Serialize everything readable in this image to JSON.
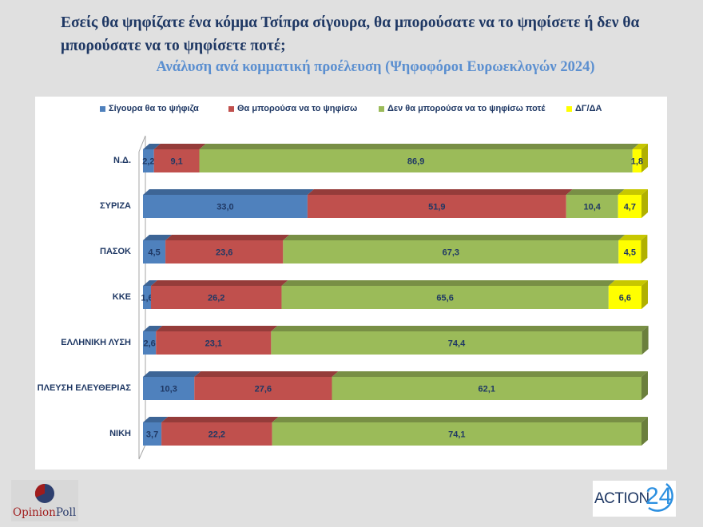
{
  "header": {
    "title": "Εσείς θα ψηφίζατε ένα κόμμα Τσίπρα σίγουρα, θα μπορούσατε να το ψηφίσετε ή δεν θα μπορούσατε να το ψηφίσετε ποτέ;",
    "subtitle": "Ανάλυση ανά κομματική προέλευση (Ψηφοφόροι Ευρωεκλογών 2024)"
  },
  "logos": {
    "opinionpoll_part1": "Opinion",
    "opinionpoll_part2": "Poll",
    "action24_text": "ACTION",
    "action24_num": "24"
  },
  "colors": {
    "series": [
      "#4f81bd",
      "#c0504d",
      "#9bbb59",
      "#ffff00"
    ],
    "series_top": [
      "#3d6596",
      "#953c3a",
      "#788f45",
      "#c7c700"
    ],
    "series_side": [
      "#365a87",
      "#85342f",
      "#6b7f3d",
      "#b0b000"
    ],
    "label": "#1f3864"
  },
  "chart_data": {
    "type": "bar",
    "orientation": "horizontal",
    "stacked": true,
    "percent_stacked": true,
    "three_d": true,
    "title": "Εσείς θα ψηφίζατε ένα κόμμα Τσίπρα σίγουρα, θα μπορούσατε να το ψηφίσετε ή δεν θα μπορούσατε να το ψηφίσετε ποτέ;",
    "subtitle": "Ανάλυση ανά κομματική προέλευση (Ψηφοφόροι Ευρωεκλογών 2024)",
    "legend_position": "top",
    "xlim": [
      0,
      100
    ],
    "categories": [
      "Ν.Δ.",
      "ΣΥΡΙΖΑ",
      "ΠΑΣΟΚ",
      "ΚΚΕ",
      "ΕΛΛΗΝΙΚΗ ΛΥΣΗ",
      "ΠΛΕΥΣΗ ΕΛΕΥΘΕΡΙΑΣ",
      "ΝΙΚΗ"
    ],
    "series": [
      {
        "name": "Σίγουρα θα το ψήφιζα",
        "values": [
          2.2,
          33.0,
          4.5,
          1.6,
          2.6,
          10.3,
          3.7
        ],
        "labels": [
          "2,2",
          "33,0",
          "4,5",
          "1,6",
          "2,6",
          "10,3",
          "3,7"
        ]
      },
      {
        "name": "Θα μπορούσα να το ψηφίσω",
        "values": [
          9.1,
          51.9,
          23.6,
          26.2,
          23.1,
          27.6,
          22.2
        ],
        "labels": [
          "9,1",
          "51,9",
          "23,6",
          "26,2",
          "23,1",
          "27,6",
          "22,2"
        ]
      },
      {
        "name": "Δεν θα μπορούσα να το ψηφίσω ποτέ",
        "values": [
          86.9,
          10.4,
          67.3,
          65.6,
          74.4,
          62.1,
          74.1
        ],
        "labels": [
          "86,9",
          "10,4",
          "67,3",
          "65,6",
          "74,4",
          "62,1",
          "74,1"
        ]
      },
      {
        "name": "ΔΓ/ΔΑ",
        "values": [
          1.8,
          4.7,
          4.5,
          6.6,
          0,
          0,
          0
        ],
        "labels": [
          "1,8",
          "4,7",
          "4,5",
          "6,6",
          "",
          "",
          ""
        ]
      }
    ]
  }
}
